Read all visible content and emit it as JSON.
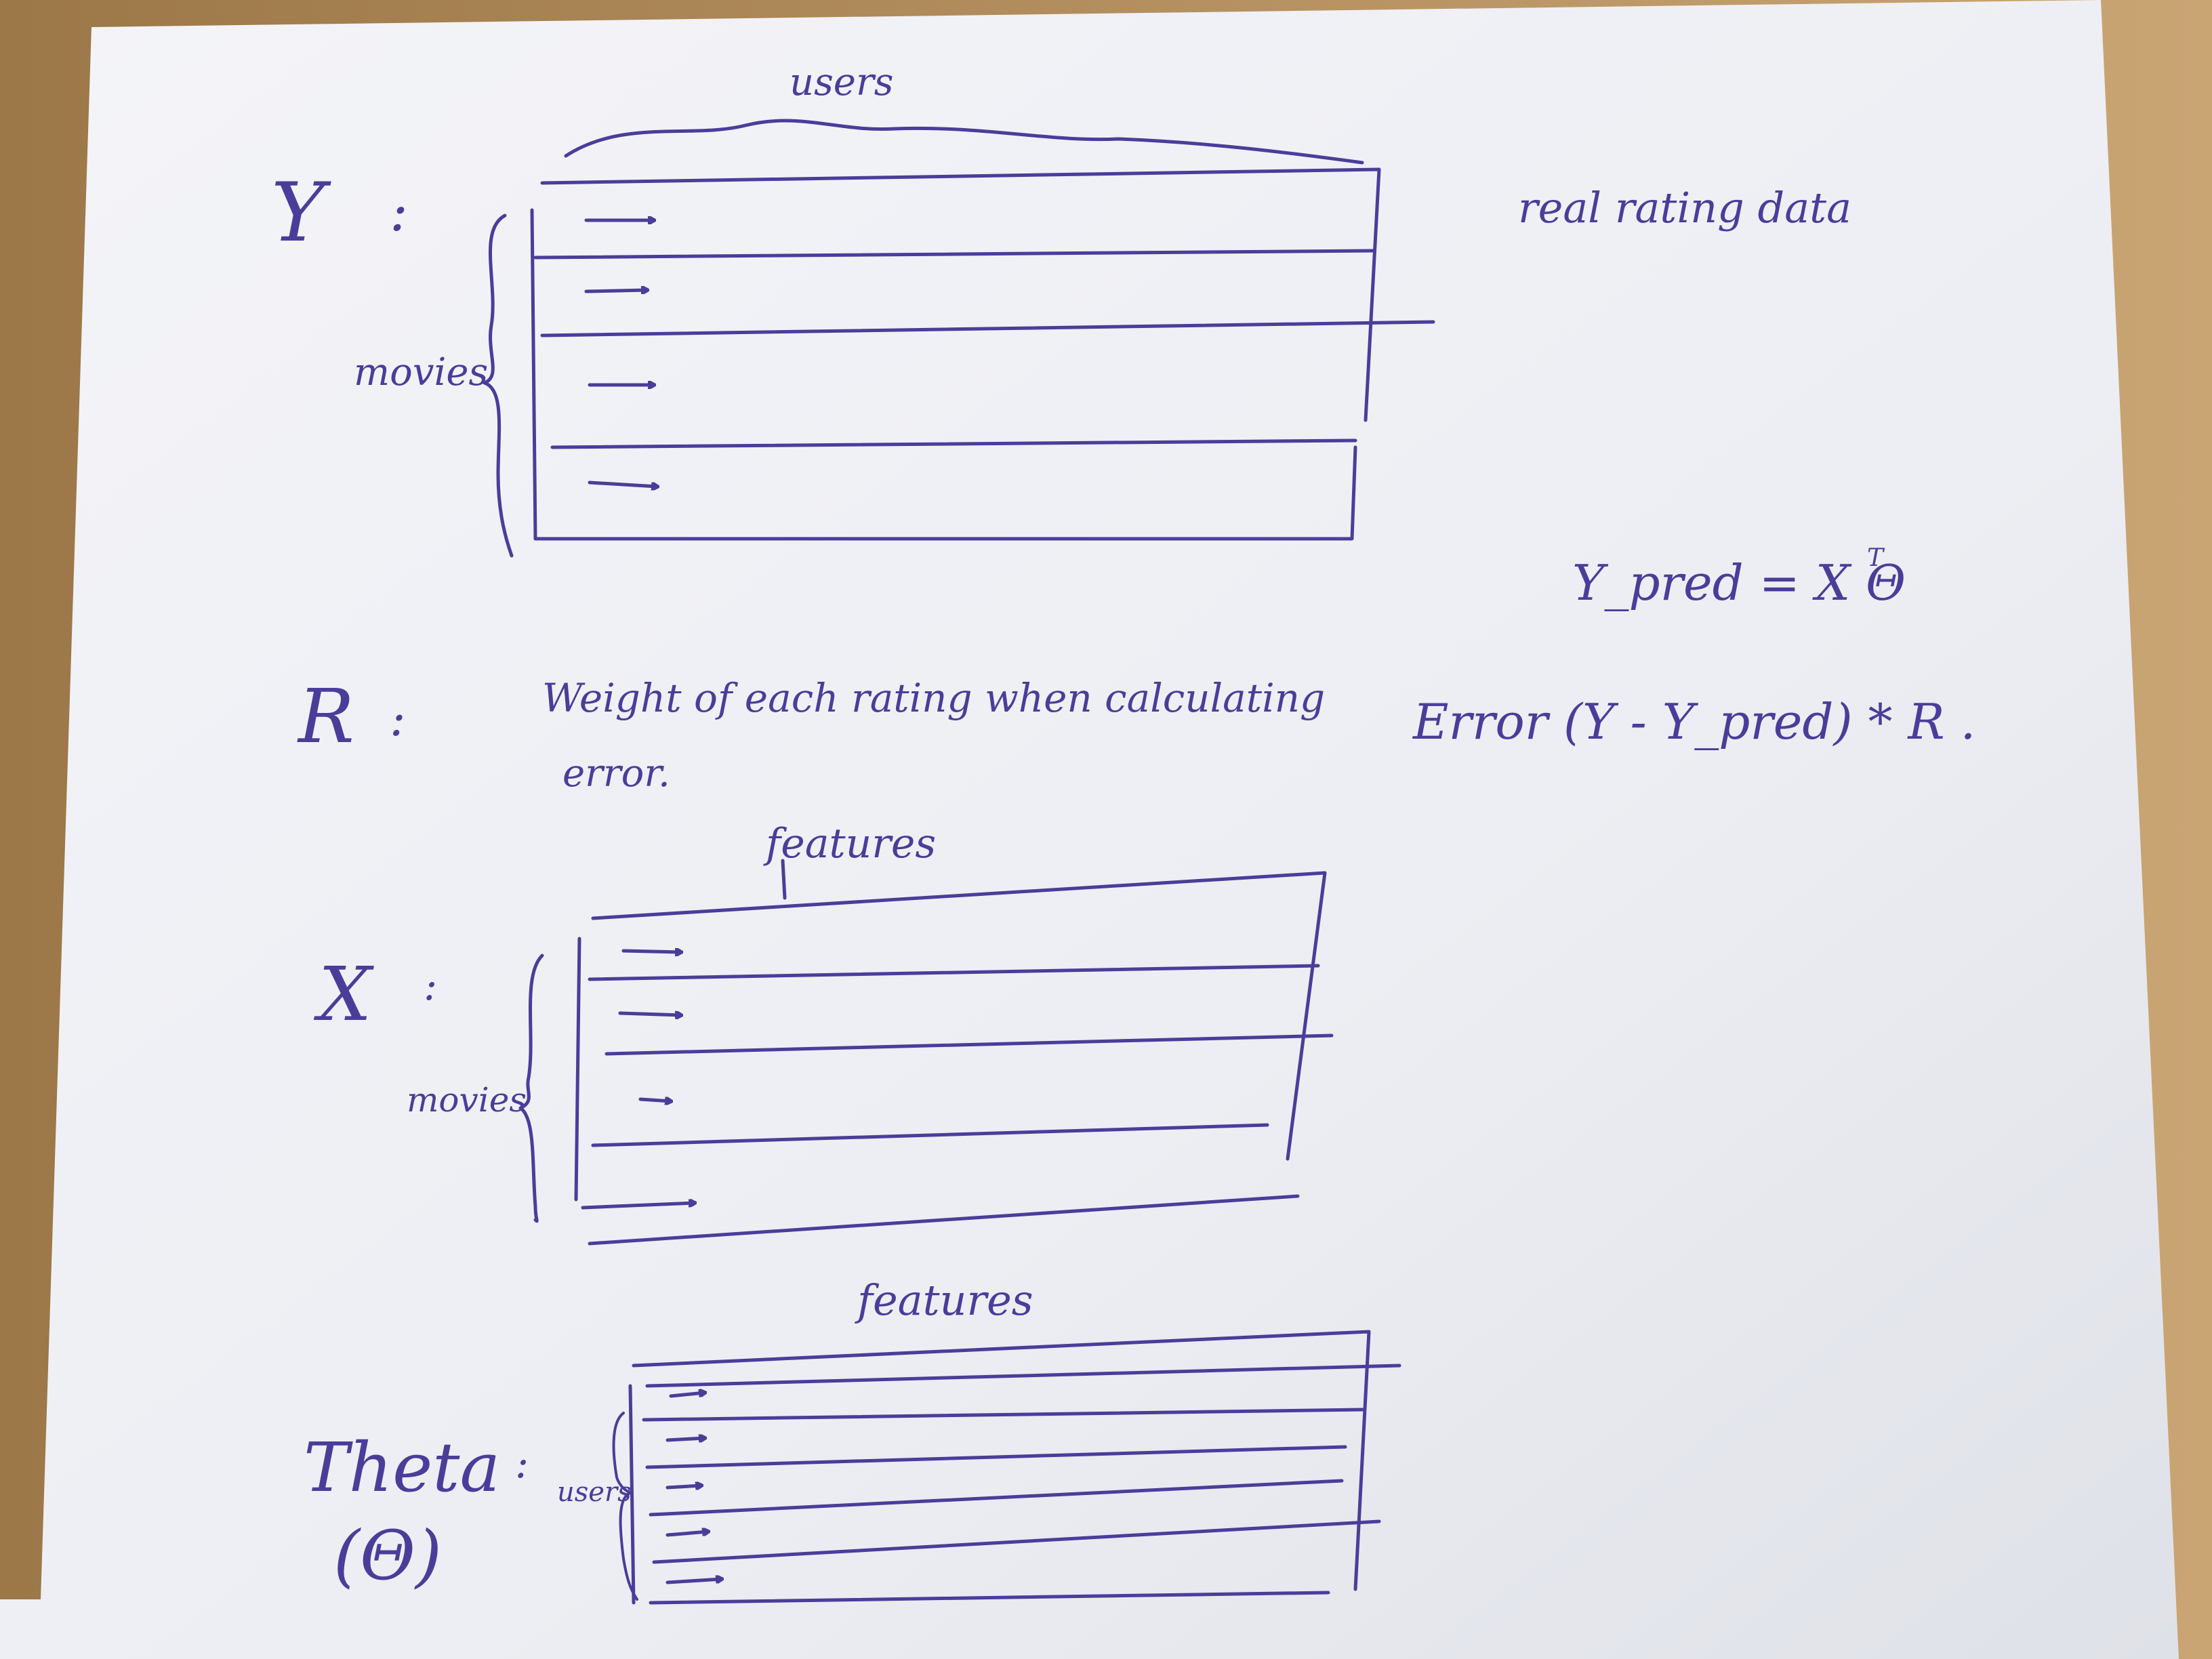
{
  "colors": {
    "paper": "#eeeef2",
    "ink": "#4a3d9a",
    "desk": "#b08a55"
  },
  "y_matrix": {
    "name": "Y",
    "colon": ":",
    "col_label": "users",
    "row_label": "movies",
    "note": "real rating data"
  },
  "formula": {
    "prediction": "Y_pred = X Θ",
    "transpose_mark": "T",
    "error": "Error (Y - Y_pred) * R ."
  },
  "r_matrix": {
    "name": "R",
    "colon": ":",
    "description_line1": "Weight of each rating when calculating",
    "description_line2": "error."
  },
  "x_matrix": {
    "name": "X",
    "colon": ":",
    "col_label": "features",
    "row_label": "movies"
  },
  "theta_matrix": {
    "name": "Theta",
    "symbol": "(Θ)",
    "colon": ":",
    "col_label": "features",
    "row_label": "users"
  }
}
